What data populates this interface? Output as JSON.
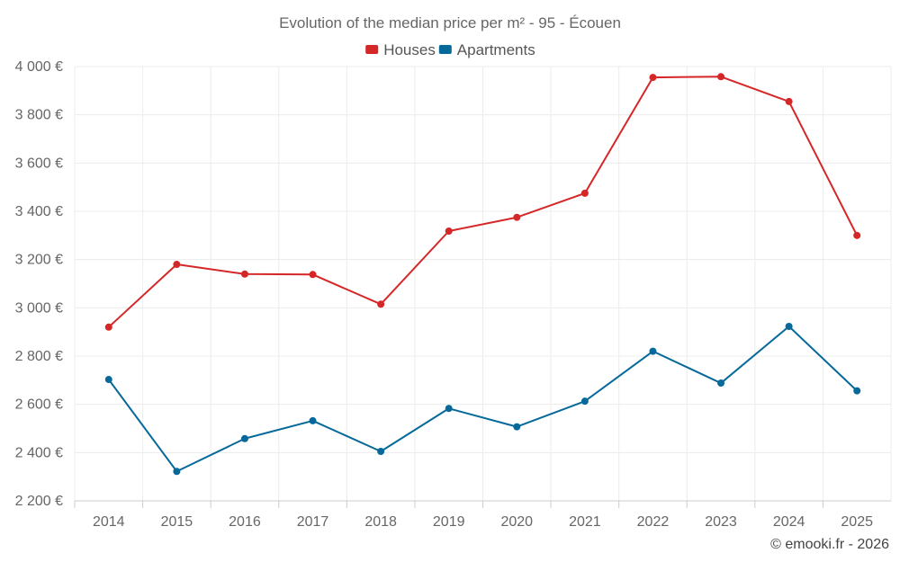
{
  "chart_data": {
    "type": "line",
    "title": "Evolution of the median price per m² - 95 - Écouen",
    "categories": [
      "2014",
      "2015",
      "2016",
      "2017",
      "2018",
      "2019",
      "2020",
      "2021",
      "2022",
      "2023",
      "2024",
      "2025"
    ],
    "series": [
      {
        "name": "Houses",
        "color": "#d62728",
        "values": [
          2920,
          3180,
          3140,
          3138,
          3015,
          3318,
          3375,
          3475,
          3955,
          3958,
          3855,
          3300
        ]
      },
      {
        "name": "Apartments",
        "color": "#06699a",
        "values": [
          2703,
          2322,
          2458,
          2532,
          2405,
          2583,
          2507,
          2613,
          2820,
          2688,
          2923,
          2656
        ]
      }
    ],
    "yticks": [
      "2 200 €",
      "2 400 €",
      "2 600 €",
      "2 800 €",
      "3 000 €",
      "3 200 €",
      "3 400 €",
      "3 600 €",
      "3 800 €",
      "4 000 €"
    ],
    "ytick_values": [
      2200,
      2400,
      2600,
      2800,
      3000,
      3200,
      3400,
      3600,
      3800,
      4000
    ],
    "ylim": [
      2200,
      4000
    ],
    "xlabel": "",
    "ylabel": "",
    "legend_position": "top-center",
    "grid": true
  },
  "credit": "© emooki.fr - 2026"
}
